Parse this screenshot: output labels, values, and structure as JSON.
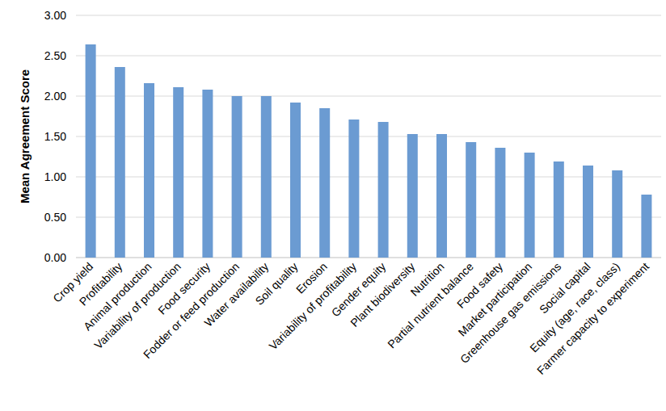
{
  "chart_data": {
    "type": "bar",
    "y_label": "Mean Agreement Score",
    "categories": [
      "Crop yield",
      "Profitability",
      "Animal production",
      "Variability of production",
      "Food security",
      "Fodder or feed production",
      "Water availability",
      "Soil quality",
      "Erosion",
      "Variability of profitability",
      "Gender equity",
      "Plant biodiversity",
      "Nutrition",
      "Partial nutrient balance",
      "Food safety",
      "Market participation",
      "Greenhouse gas emissions",
      "Social capital",
      "Equity (age, race, class)",
      "Farmer capacity to experiment"
    ],
    "values": [
      2.64,
      2.36,
      2.16,
      2.11,
      2.08,
      2.0,
      2.0,
      1.92,
      1.85,
      1.71,
      1.68,
      1.53,
      1.53,
      1.43,
      1.36,
      1.3,
      1.19,
      1.14,
      1.08,
      0.78
    ],
    "color": "#6b9bd2",
    "ylim": [
      0,
      3
    ],
    "yticks": [
      {
        "value": 0,
        "label": "0.00"
      },
      {
        "value": 0.5,
        "label": "0.50"
      },
      {
        "value": 1,
        "label": "1.00"
      },
      {
        "value": 1.5,
        "label": "1.50"
      },
      {
        "value": 2,
        "label": "2.00"
      },
      {
        "value": 2.5,
        "label": "2.50"
      },
      {
        "value": 3,
        "label": "3.00"
      }
    ],
    "grid": true
  }
}
